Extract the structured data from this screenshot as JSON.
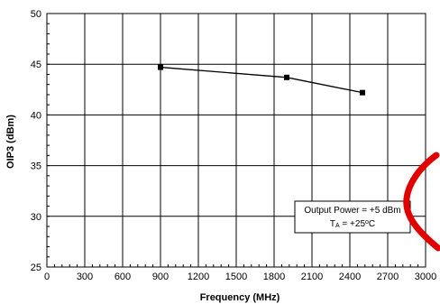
{
  "chart_data": {
    "type": "line",
    "title": "",
    "xlabel": "Frequency (MHz)",
    "ylabel": "OIP3 (dBm)",
    "xlim": [
      0,
      3000
    ],
    "ylim": [
      25,
      50
    ],
    "x_ticks": [
      "0",
      "300",
      "600",
      "900",
      "1200",
      "1500",
      "1800",
      "2100",
      "2400",
      "2700",
      "3000"
    ],
    "y_ticks": [
      "25",
      "30",
      "35",
      "40",
      "45",
      "50"
    ],
    "grid": true,
    "series": [
      {
        "x": [
          900,
          1900,
          2500
        ],
        "y": [
          44.7,
          43.7,
          42.2
        ],
        "marker": "square",
        "color": "#000000"
      }
    ],
    "annotation": {
      "line1": "Output Power = +5 dBm",
      "line2_prefix": "T",
      "line2_sub": "A",
      "line2_mid": " = +25",
      "line2_sup": "o",
      "line2_suffix": "C",
      "placement": "lower-right"
    },
    "decoration_color": "#e00000"
  }
}
